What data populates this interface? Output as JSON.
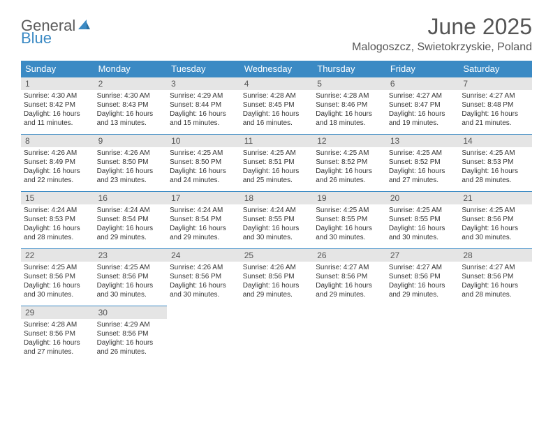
{
  "logo": {
    "text1": "General",
    "text2": "Blue"
  },
  "title": "June 2025",
  "subtitle": "Malogoszcz, Swietokrzyskie, Poland",
  "day_headers": [
    "Sunday",
    "Monday",
    "Tuesday",
    "Wednesday",
    "Thursday",
    "Friday",
    "Saturday"
  ],
  "colors": {
    "header_bg": "#3b8ac4",
    "header_fg": "#ffffff",
    "daynum_bg": "#e5e5e5",
    "border": "#3b8ac4",
    "logo_gray": "#5a5a5a",
    "logo_blue": "#3b8ac4"
  },
  "weeks": [
    [
      {
        "n": "1",
        "sr": "Sunrise: 4:30 AM",
        "ss": "Sunset: 8:42 PM",
        "d1": "Daylight: 16 hours",
        "d2": "and 11 minutes."
      },
      {
        "n": "2",
        "sr": "Sunrise: 4:30 AM",
        "ss": "Sunset: 8:43 PM",
        "d1": "Daylight: 16 hours",
        "d2": "and 13 minutes."
      },
      {
        "n": "3",
        "sr": "Sunrise: 4:29 AM",
        "ss": "Sunset: 8:44 PM",
        "d1": "Daylight: 16 hours",
        "d2": "and 15 minutes."
      },
      {
        "n": "4",
        "sr": "Sunrise: 4:28 AM",
        "ss": "Sunset: 8:45 PM",
        "d1": "Daylight: 16 hours",
        "d2": "and 16 minutes."
      },
      {
        "n": "5",
        "sr": "Sunrise: 4:28 AM",
        "ss": "Sunset: 8:46 PM",
        "d1": "Daylight: 16 hours",
        "d2": "and 18 minutes."
      },
      {
        "n": "6",
        "sr": "Sunrise: 4:27 AM",
        "ss": "Sunset: 8:47 PM",
        "d1": "Daylight: 16 hours",
        "d2": "and 19 minutes."
      },
      {
        "n": "7",
        "sr": "Sunrise: 4:27 AM",
        "ss": "Sunset: 8:48 PM",
        "d1": "Daylight: 16 hours",
        "d2": "and 21 minutes."
      }
    ],
    [
      {
        "n": "8",
        "sr": "Sunrise: 4:26 AM",
        "ss": "Sunset: 8:49 PM",
        "d1": "Daylight: 16 hours",
        "d2": "and 22 minutes."
      },
      {
        "n": "9",
        "sr": "Sunrise: 4:26 AM",
        "ss": "Sunset: 8:50 PM",
        "d1": "Daylight: 16 hours",
        "d2": "and 23 minutes."
      },
      {
        "n": "10",
        "sr": "Sunrise: 4:25 AM",
        "ss": "Sunset: 8:50 PM",
        "d1": "Daylight: 16 hours",
        "d2": "and 24 minutes."
      },
      {
        "n": "11",
        "sr": "Sunrise: 4:25 AM",
        "ss": "Sunset: 8:51 PM",
        "d1": "Daylight: 16 hours",
        "d2": "and 25 minutes."
      },
      {
        "n": "12",
        "sr": "Sunrise: 4:25 AM",
        "ss": "Sunset: 8:52 PM",
        "d1": "Daylight: 16 hours",
        "d2": "and 26 minutes."
      },
      {
        "n": "13",
        "sr": "Sunrise: 4:25 AM",
        "ss": "Sunset: 8:52 PM",
        "d1": "Daylight: 16 hours",
        "d2": "and 27 minutes."
      },
      {
        "n": "14",
        "sr": "Sunrise: 4:25 AM",
        "ss": "Sunset: 8:53 PM",
        "d1": "Daylight: 16 hours",
        "d2": "and 28 minutes."
      }
    ],
    [
      {
        "n": "15",
        "sr": "Sunrise: 4:24 AM",
        "ss": "Sunset: 8:53 PM",
        "d1": "Daylight: 16 hours",
        "d2": "and 28 minutes."
      },
      {
        "n": "16",
        "sr": "Sunrise: 4:24 AM",
        "ss": "Sunset: 8:54 PM",
        "d1": "Daylight: 16 hours",
        "d2": "and 29 minutes."
      },
      {
        "n": "17",
        "sr": "Sunrise: 4:24 AM",
        "ss": "Sunset: 8:54 PM",
        "d1": "Daylight: 16 hours",
        "d2": "and 29 minutes."
      },
      {
        "n": "18",
        "sr": "Sunrise: 4:24 AM",
        "ss": "Sunset: 8:55 PM",
        "d1": "Daylight: 16 hours",
        "d2": "and 30 minutes."
      },
      {
        "n": "19",
        "sr": "Sunrise: 4:25 AM",
        "ss": "Sunset: 8:55 PM",
        "d1": "Daylight: 16 hours",
        "d2": "and 30 minutes."
      },
      {
        "n": "20",
        "sr": "Sunrise: 4:25 AM",
        "ss": "Sunset: 8:55 PM",
        "d1": "Daylight: 16 hours",
        "d2": "and 30 minutes."
      },
      {
        "n": "21",
        "sr": "Sunrise: 4:25 AM",
        "ss": "Sunset: 8:56 PM",
        "d1": "Daylight: 16 hours",
        "d2": "and 30 minutes."
      }
    ],
    [
      {
        "n": "22",
        "sr": "Sunrise: 4:25 AM",
        "ss": "Sunset: 8:56 PM",
        "d1": "Daylight: 16 hours",
        "d2": "and 30 minutes."
      },
      {
        "n": "23",
        "sr": "Sunrise: 4:25 AM",
        "ss": "Sunset: 8:56 PM",
        "d1": "Daylight: 16 hours",
        "d2": "and 30 minutes."
      },
      {
        "n": "24",
        "sr": "Sunrise: 4:26 AM",
        "ss": "Sunset: 8:56 PM",
        "d1": "Daylight: 16 hours",
        "d2": "and 30 minutes."
      },
      {
        "n": "25",
        "sr": "Sunrise: 4:26 AM",
        "ss": "Sunset: 8:56 PM",
        "d1": "Daylight: 16 hours",
        "d2": "and 29 minutes."
      },
      {
        "n": "26",
        "sr": "Sunrise: 4:27 AM",
        "ss": "Sunset: 8:56 PM",
        "d1": "Daylight: 16 hours",
        "d2": "and 29 minutes."
      },
      {
        "n": "27",
        "sr": "Sunrise: 4:27 AM",
        "ss": "Sunset: 8:56 PM",
        "d1": "Daylight: 16 hours",
        "d2": "and 29 minutes."
      },
      {
        "n": "28",
        "sr": "Sunrise: 4:27 AM",
        "ss": "Sunset: 8:56 PM",
        "d1": "Daylight: 16 hours",
        "d2": "and 28 minutes."
      }
    ],
    [
      {
        "n": "29",
        "sr": "Sunrise: 4:28 AM",
        "ss": "Sunset: 8:56 PM",
        "d1": "Daylight: 16 hours",
        "d2": "and 27 minutes."
      },
      {
        "n": "30",
        "sr": "Sunrise: 4:29 AM",
        "ss": "Sunset: 8:56 PM",
        "d1": "Daylight: 16 hours",
        "d2": "and 26 minutes."
      },
      {
        "empty": true
      },
      {
        "empty": true
      },
      {
        "empty": true
      },
      {
        "empty": true
      },
      {
        "empty": true
      }
    ]
  ]
}
